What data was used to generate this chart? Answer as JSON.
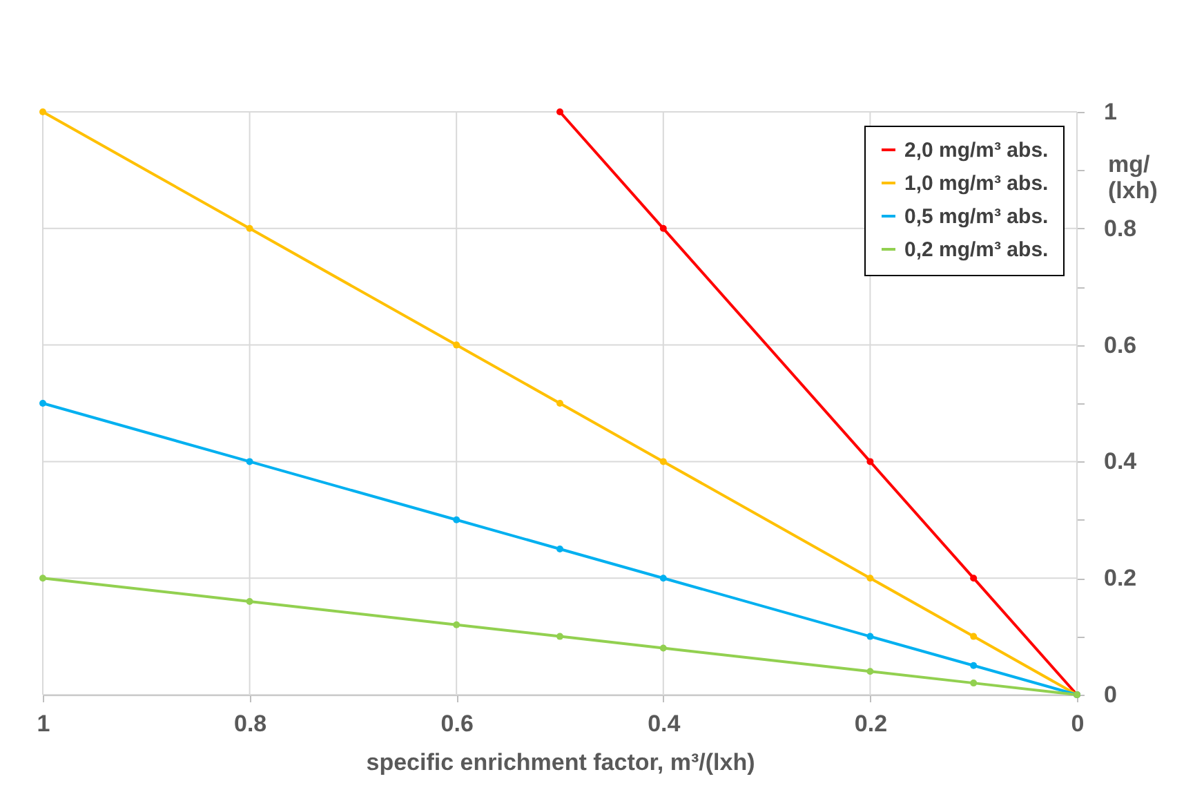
{
  "chart_data": {
    "type": "line",
    "xlabel": "specific enrichment factor, m³/(lxh)",
    "ylabel": "mg/(lxh)",
    "xlim": [
      1,
      0
    ],
    "xticks": [
      1,
      0.8,
      0.6,
      0.4,
      0.2,
      0
    ],
    "ylim": [
      0,
      1
    ],
    "yticks": [
      0,
      {
        "value": 0.1,
        "label": null
      },
      0.2,
      {
        "value": 0.3,
        "label": null
      },
      0.4,
      {
        "value": 0.5,
        "label": null
      },
      0.6,
      {
        "value": 0.7,
        "label": null
      },
      0.8,
      {
        "value": 0.9,
        "label": null
      },
      1
    ],
    "grid": true,
    "legend": "top right",
    "marker": "circle",
    "line_style": "solid",
    "series": [
      {
        "name": "2,0 mg/m³ abs.",
        "color": "#ff0000",
        "x": [
          0.5,
          0.4,
          0.2,
          0.1,
          0
        ],
        "values": [
          1,
          0.8,
          0.4,
          0.2,
          0
        ]
      },
      {
        "name": "1,0 mg/m³ abs.",
        "color": "#ffc000",
        "x": [
          1,
          0.8,
          0.6,
          0.5,
          0.4,
          0.2,
          0.1,
          0
        ],
        "values": [
          1,
          0.8,
          0.6,
          0.5,
          0.4,
          0.2,
          0.1,
          0
        ]
      },
      {
        "name": "0,5 mg/m³ abs.",
        "color": "#00b0f0",
        "x": [
          1,
          0.8,
          0.6,
          0.5,
          0.4,
          0.2,
          0.1,
          0
        ],
        "values": [
          0.5,
          0.4,
          0.3,
          0.25,
          0.2,
          0.1,
          0.05,
          0
        ]
      },
      {
        "name": "0,2 mg/m³ abs.",
        "color": "#92d050",
        "x": [
          1,
          0.8,
          0.6,
          0.5,
          0.4,
          0.2,
          0.1,
          0
        ],
        "values": [
          0.2,
          0.16,
          0.12,
          0.1,
          0.08,
          0.04,
          0.02,
          0
        ]
      }
    ]
  }
}
